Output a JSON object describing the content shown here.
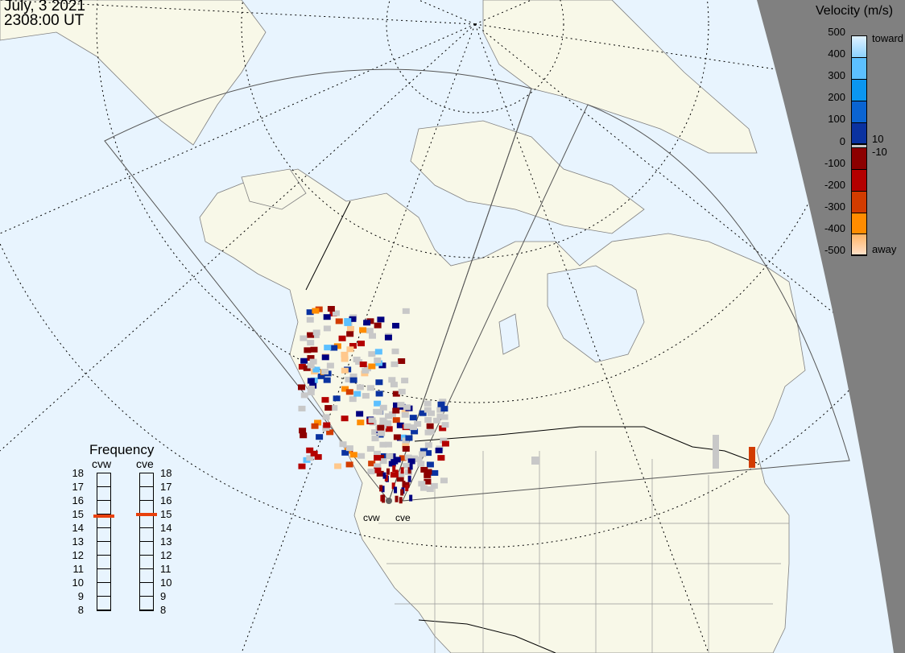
{
  "header": {
    "date": "July, 3 2021",
    "time": "2308:00 UT"
  },
  "velocity_scale": {
    "title": "Velocity (m/s)",
    "ticks": [
      "500",
      "400",
      "300",
      "200",
      "100",
      "0",
      "-100",
      "-200",
      "-300",
      "-400",
      "-500"
    ],
    "toward_label": "toward",
    "away_label": "away",
    "threshold_pos": "10",
    "threshold_neg": "-10",
    "colors": [
      "#c8e8ff",
      "#5cc0ff",
      "#0a96f0",
      "#0a64d2",
      "#0a32a0",
      "#000080",
      "#8c0000",
      "#b40000",
      "#d23c00",
      "#ff8c00",
      "#ffc88c"
    ],
    "ground_scatter_color": "#c8c8c8"
  },
  "frequency": {
    "title": "Frequency",
    "radars": [
      {
        "name": "cvw",
        "value_mhz": 14.9
      },
      {
        "name": "cve",
        "value_mhz": 15.0
      }
    ],
    "ticks": [
      "18",
      "17",
      "16",
      "15",
      "14",
      "13",
      "12",
      "11",
      "10",
      "9",
      "8"
    ],
    "range": [
      8,
      18
    ],
    "marker_color": "#e8400c"
  },
  "sites": {
    "west": "cvw",
    "east": "cve"
  },
  "colors": {
    "ocean": "#e8f4fe",
    "land": "#f8f8e8",
    "night": "#808080"
  }
}
